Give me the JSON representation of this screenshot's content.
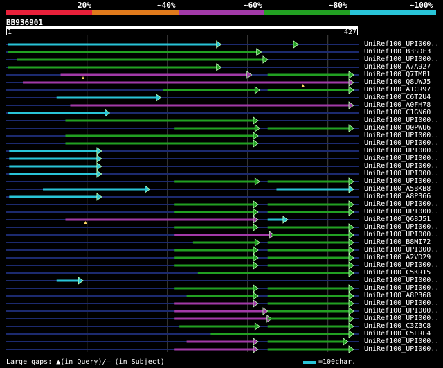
{
  "scale": {
    "labels": [
      "20%",
      "~40%",
      "~60%",
      "~80%",
      "~100%"
    ],
    "colors": [
      "#e8203a",
      "#e07a1c",
      "#a23aa8",
      "#22a022",
      "#29c4d8"
    ]
  },
  "query": {
    "id": "BB936901",
    "start": "1",
    "end": "427",
    "length": 427
  },
  "colors": {
    "cyan": "#29c4d8",
    "green": "#22a022",
    "magenta": "#a23aa8",
    "line": "#1c2a6e",
    "grid": "#444444"
  },
  "hits": [
    {
      "name": "UniRef100_UPI000..",
      "segs": [
        [
          1,
          262,
          "cyan",
          false
        ],
        [
          262,
          262,
          "cyan",
          true
        ],
        [
          310,
          358,
          "green",
          true
        ],
        [
          358,
          358,
          "green",
          true
        ]
      ],
      "gaps": []
    },
    {
      "name": "UniRef100_B3SDF3",
      "segs": [
        [
          1,
          312,
          "green",
          false
        ],
        [
          312,
          312,
          "green",
          true
        ]
      ],
      "gaps": []
    },
    {
      "name": "UniRef100_UPI000..",
      "segs": [
        [
          13,
          320,
          "green",
          false
        ],
        [
          320,
          320,
          "green",
          true
        ]
      ],
      "gaps": []
    },
    {
      "name": "UniRef100_A7A927",
      "segs": [
        [
          1,
          262,
          "green",
          false
        ],
        [
          262,
          262,
          "green",
          true
        ]
      ],
      "gaps": []
    },
    {
      "name": "UniRef100_Q7TMB1",
      "segs": [
        [
          67,
          300,
          "magenta",
          false
        ],
        [
          300,
          300,
          "magenta",
          true
        ],
        [
          325,
          427,
          "green",
          false
        ],
        [
          427,
          427,
          "green",
          true
        ]
      ],
      "gaps": [
        [
          95,
          "q"
        ]
      ]
    },
    {
      "name": "UniRef100_Q8UWJ5",
      "segs": [
        [
          20,
          427,
          "magenta",
          false
        ],
        [
          427,
          427,
          "magenta",
          true
        ]
      ],
      "gaps": [
        [
          369,
          "q"
        ]
      ]
    },
    {
      "name": "UniRef100_A1CR97",
      "segs": [
        [
          195,
          310,
          "green",
          false
        ],
        [
          310,
          310,
          "green",
          true
        ],
        [
          325,
          427,
          "green",
          false
        ],
        [
          427,
          427,
          "green",
          true
        ]
      ],
      "gaps": []
    },
    {
      "name": "UniRef100_C6T2U4",
      "segs": [
        [
          62,
          187,
          "cyan",
          false
        ],
        [
          187,
          187,
          "cyan",
          true
        ]
      ],
      "gaps": []
    },
    {
      "name": "UniRef100_A0FH78",
      "segs": [
        [
          79,
          427,
          "magenta",
          false
        ],
        [
          427,
          427,
          "magenta",
          true
        ]
      ],
      "gaps": []
    },
    {
      "name": "UniRef100_C1GN60",
      "segs": [
        [
          1,
          123,
          "cyan",
          false
        ],
        [
          123,
          123,
          "cyan",
          true
        ]
      ],
      "gaps": []
    },
    {
      "name": "UniRef100_UPI000..",
      "segs": [
        [
          73,
          308,
          "green",
          false
        ],
        [
          308,
          308,
          "green",
          true
        ]
      ],
      "gaps": []
    },
    {
      "name": "UniRef100_Q0PWU6",
      "segs": [
        [
          209,
          310,
          "green",
          false
        ],
        [
          310,
          310,
          "green",
          true
        ],
        [
          325,
          427,
          "green",
          false
        ],
        [
          427,
          427,
          "green",
          true
        ]
      ],
      "gaps": []
    },
    {
      "name": "UniRef100_UPI000..",
      "segs": [
        [
          73,
          308,
          "green",
          false
        ],
        [
          308,
          308,
          "green",
          true
        ]
      ],
      "gaps": []
    },
    {
      "name": "UniRef100_UPI000..",
      "segs": [
        [
          73,
          308,
          "green",
          false
        ],
        [
          308,
          308,
          "green",
          true
        ]
      ],
      "gaps": []
    },
    {
      "name": "UniRef100_UPI000..",
      "segs": [
        [
          3,
          113,
          "cyan",
          false
        ],
        [
          113,
          113,
          "cyan",
          true
        ]
      ],
      "gaps": []
    },
    {
      "name": "UniRef100_UPI000..",
      "segs": [
        [
          3,
          113,
          "cyan",
          false
        ],
        [
          113,
          113,
          "cyan",
          true
        ]
      ],
      "gaps": []
    },
    {
      "name": "UniRef100_UPI000..",
      "segs": [
        [
          3,
          113,
          "cyan",
          false
        ],
        [
          113,
          113,
          "cyan",
          true
        ]
      ],
      "gaps": []
    },
    {
      "name": "UniRef100_UPI000..",
      "segs": [
        [
          3,
          113,
          "cyan",
          false
        ],
        [
          113,
          113,
          "cyan",
          true
        ]
      ],
      "gaps": []
    },
    {
      "name": "UniRef100_UPI000..",
      "segs": [
        [
          209,
          310,
          "green",
          false
        ],
        [
          310,
          310,
          "green",
          true
        ],
        [
          325,
          427,
          "green",
          false
        ],
        [
          427,
          427,
          "green",
          true
        ]
      ],
      "gaps": []
    },
    {
      "name": "UniRef100_A5BKB8",
      "segs": [
        [
          45,
          173,
          "cyan",
          false
        ],
        [
          173,
          173,
          "cyan",
          true
        ],
        [
          336,
          427,
          "cyan",
          false
        ],
        [
          427,
          427,
          "cyan",
          true
        ]
      ],
      "gaps": []
    },
    {
      "name": "UniRef100_A8P366",
      "segs": [
        [
          3,
          113,
          "cyan",
          false
        ],
        [
          113,
          113,
          "cyan",
          true
        ]
      ],
      "gaps": []
    },
    {
      "name": "UniRef100_UPI000..",
      "segs": [
        [
          209,
          308,
          "green",
          false
        ],
        [
          308,
          308,
          "green",
          true
        ],
        [
          325,
          427,
          "green",
          false
        ],
        [
          427,
          427,
          "green",
          true
        ]
      ],
      "gaps": []
    },
    {
      "name": "UniRef100_UPI000..",
      "segs": [
        [
          209,
          308,
          "green",
          false
        ],
        [
          308,
          308,
          "green",
          true
        ],
        [
          325,
          427,
          "green",
          false
        ],
        [
          427,
          427,
          "green",
          true
        ]
      ],
      "gaps": []
    },
    {
      "name": "UniRef100_Q68J51",
      "segs": [
        [
          73,
          308,
          "magenta",
          false
        ],
        [
          308,
          308,
          "magenta",
          true
        ],
        [
          325,
          345,
          "cyan",
          false
        ],
        [
          345,
          345,
          "cyan",
          true
        ]
      ],
      "gaps": [
        [
          98,
          "q"
        ]
      ]
    },
    {
      "name": "UniRef100_UPI000..",
      "segs": [
        [
          209,
          308,
          "green",
          false
        ],
        [
          308,
          308,
          "green",
          true
        ],
        [
          325,
          427,
          "green",
          false
        ],
        [
          427,
          427,
          "green",
          true
        ]
      ],
      "gaps": []
    },
    {
      "name": "UniRef100_UPI000..",
      "segs": [
        [
          209,
          328,
          "magenta",
          false
        ],
        [
          328,
          328,
          "magenta",
          true
        ],
        [
          330,
          427,
          "green",
          false
        ],
        [
          427,
          427,
          "green",
          true
        ]
      ],
      "gaps": []
    },
    {
      "name": "UniRef100_B8MI72",
      "segs": [
        [
          232,
          310,
          "green",
          false
        ],
        [
          310,
          310,
          "green",
          true
        ],
        [
          325,
          427,
          "green",
          false
        ],
        [
          427,
          427,
          "green",
          true
        ]
      ],
      "gaps": []
    },
    {
      "name": "UniRef100_UPI000..",
      "segs": [
        [
          209,
          308,
          "green",
          false
        ],
        [
          308,
          308,
          "green",
          true
        ],
        [
          325,
          427,
          "green",
          false
        ],
        [
          427,
          427,
          "green",
          true
        ]
      ],
      "gaps": []
    },
    {
      "name": "UniRef100_A2VD29",
      "segs": [
        [
          209,
          308,
          "green",
          false
        ],
        [
          308,
          308,
          "green",
          true
        ],
        [
          325,
          427,
          "green",
          false
        ],
        [
          427,
          427,
          "green",
          true
        ]
      ],
      "gaps": []
    },
    {
      "name": "UniRef100_UPI000..",
      "segs": [
        [
          209,
          308,
          "green",
          false
        ],
        [
          308,
          308,
          "green",
          true
        ],
        [
          325,
          427,
          "green",
          false
        ],
        [
          427,
          427,
          "green",
          true
        ]
      ],
      "gaps": []
    },
    {
      "name": "UniRef100_C5KR15",
      "segs": [
        [
          238,
          427,
          "green",
          false
        ],
        [
          427,
          427,
          "green",
          true
        ]
      ],
      "gaps": []
    },
    {
      "name": "UniRef100_UPI000..",
      "segs": [
        [
          62,
          90,
          "cyan",
          false
        ],
        [
          90,
          90,
          "cyan",
          true
        ]
      ],
      "gaps": []
    },
    {
      "name": "UniRef100_UPI000..",
      "segs": [
        [
          209,
          308,
          "green",
          false
        ],
        [
          308,
          308,
          "green",
          true
        ],
        [
          325,
          427,
          "green",
          false
        ],
        [
          427,
          427,
          "green",
          true
        ]
      ],
      "gaps": []
    },
    {
      "name": "UniRef100_A8P368",
      "segs": [
        [
          224,
          308,
          "green",
          false
        ],
        [
          308,
          308,
          "green",
          true
        ],
        [
          325,
          427,
          "green",
          false
        ],
        [
          427,
          427,
          "green",
          true
        ]
      ],
      "gaps": []
    },
    {
      "name": "UniRef100_UPI000..",
      "segs": [
        [
          209,
          308,
          "magenta",
          false
        ],
        [
          308,
          308,
          "magenta",
          true
        ],
        [
          325,
          427,
          "green",
          false
        ],
        [
          427,
          427,
          "green",
          true
        ]
      ],
      "gaps": []
    },
    {
      "name": "UniRef100_UPI000..",
      "segs": [
        [
          209,
          320,
          "magenta",
          false
        ],
        [
          320,
          320,
          "magenta",
          true
        ],
        [
          325,
          427,
          "green",
          false
        ],
        [
          427,
          427,
          "green",
          true
        ]
      ],
      "gaps": []
    },
    {
      "name": "UniRef100_UPI000..",
      "segs": [
        [
          209,
          325,
          "magenta",
          false
        ],
        [
          325,
          325,
          "magenta",
          true
        ],
        [
          325,
          427,
          "green",
          false
        ],
        [
          427,
          427,
          "green",
          true
        ]
      ],
      "gaps": []
    },
    {
      "name": "UniRef100_C3Z3C8",
      "segs": [
        [
          215,
          310,
          "green",
          false
        ],
        [
          310,
          310,
          "green",
          true
        ],
        [
          325,
          427,
          "green",
          false
        ],
        [
          427,
          427,
          "green",
          true
        ]
      ],
      "gaps": []
    },
    {
      "name": "UniRef100_C5LRL4",
      "segs": [
        [
          254,
          427,
          "green",
          false
        ],
        [
          427,
          427,
          "green",
          true
        ]
      ],
      "gaps": []
    },
    {
      "name": "UniRef100_UPI000..",
      "segs": [
        [
          224,
          308,
          "magenta",
          false
        ],
        [
          308,
          308,
          "magenta",
          true
        ],
        [
          325,
          420,
          "green",
          false
        ],
        [
          420,
          420,
          "green",
          true
        ]
      ],
      "gaps": []
    },
    {
      "name": "UniRef100_UPI000..",
      "segs": [
        [
          209,
          308,
          "magenta",
          false
        ],
        [
          308,
          308,
          "magenta",
          true
        ],
        [
          325,
          427,
          "green",
          false
        ],
        [
          427,
          427,
          "green",
          true
        ]
      ],
      "gaps": []
    }
  ],
  "legend": {
    "text": "Large gaps: ▲(in Query)/— (in Subject)",
    "scale": "=100char."
  }
}
